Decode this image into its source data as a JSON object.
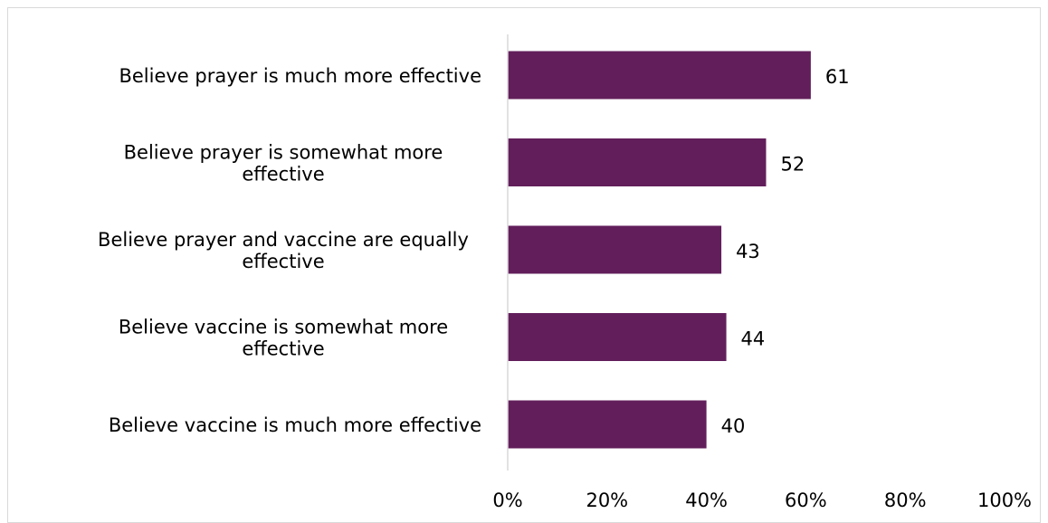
{
  "chart_data": {
    "type": "bar",
    "orientation": "horizontal",
    "categories": [
      [
        "Believe prayer is much more effective"
      ],
      [
        "Believe prayer is somewhat more",
        "effective"
      ],
      [
        "Believe prayer and vaccine are equally",
        "effective"
      ],
      [
        "Believe vaccine is somewhat more",
        "effective"
      ],
      [
        "Believe vaccine is much more effective"
      ]
    ],
    "values": [
      61,
      52,
      43,
      44,
      40
    ],
    "value_labels": [
      "61",
      "52",
      "43",
      "44",
      "40"
    ],
    "xlim": [
      0,
      100
    ],
    "x_ticks": [
      0,
      20,
      40,
      60,
      80,
      100
    ],
    "x_tick_labels": [
      "0%",
      "20%",
      "40%",
      "60%",
      "80%",
      "100%"
    ],
    "bar_color": "#621e5b",
    "axis_color": "#d9d9d9",
    "grid": false,
    "title": "",
    "xlabel": "",
    "ylabel": ""
  }
}
